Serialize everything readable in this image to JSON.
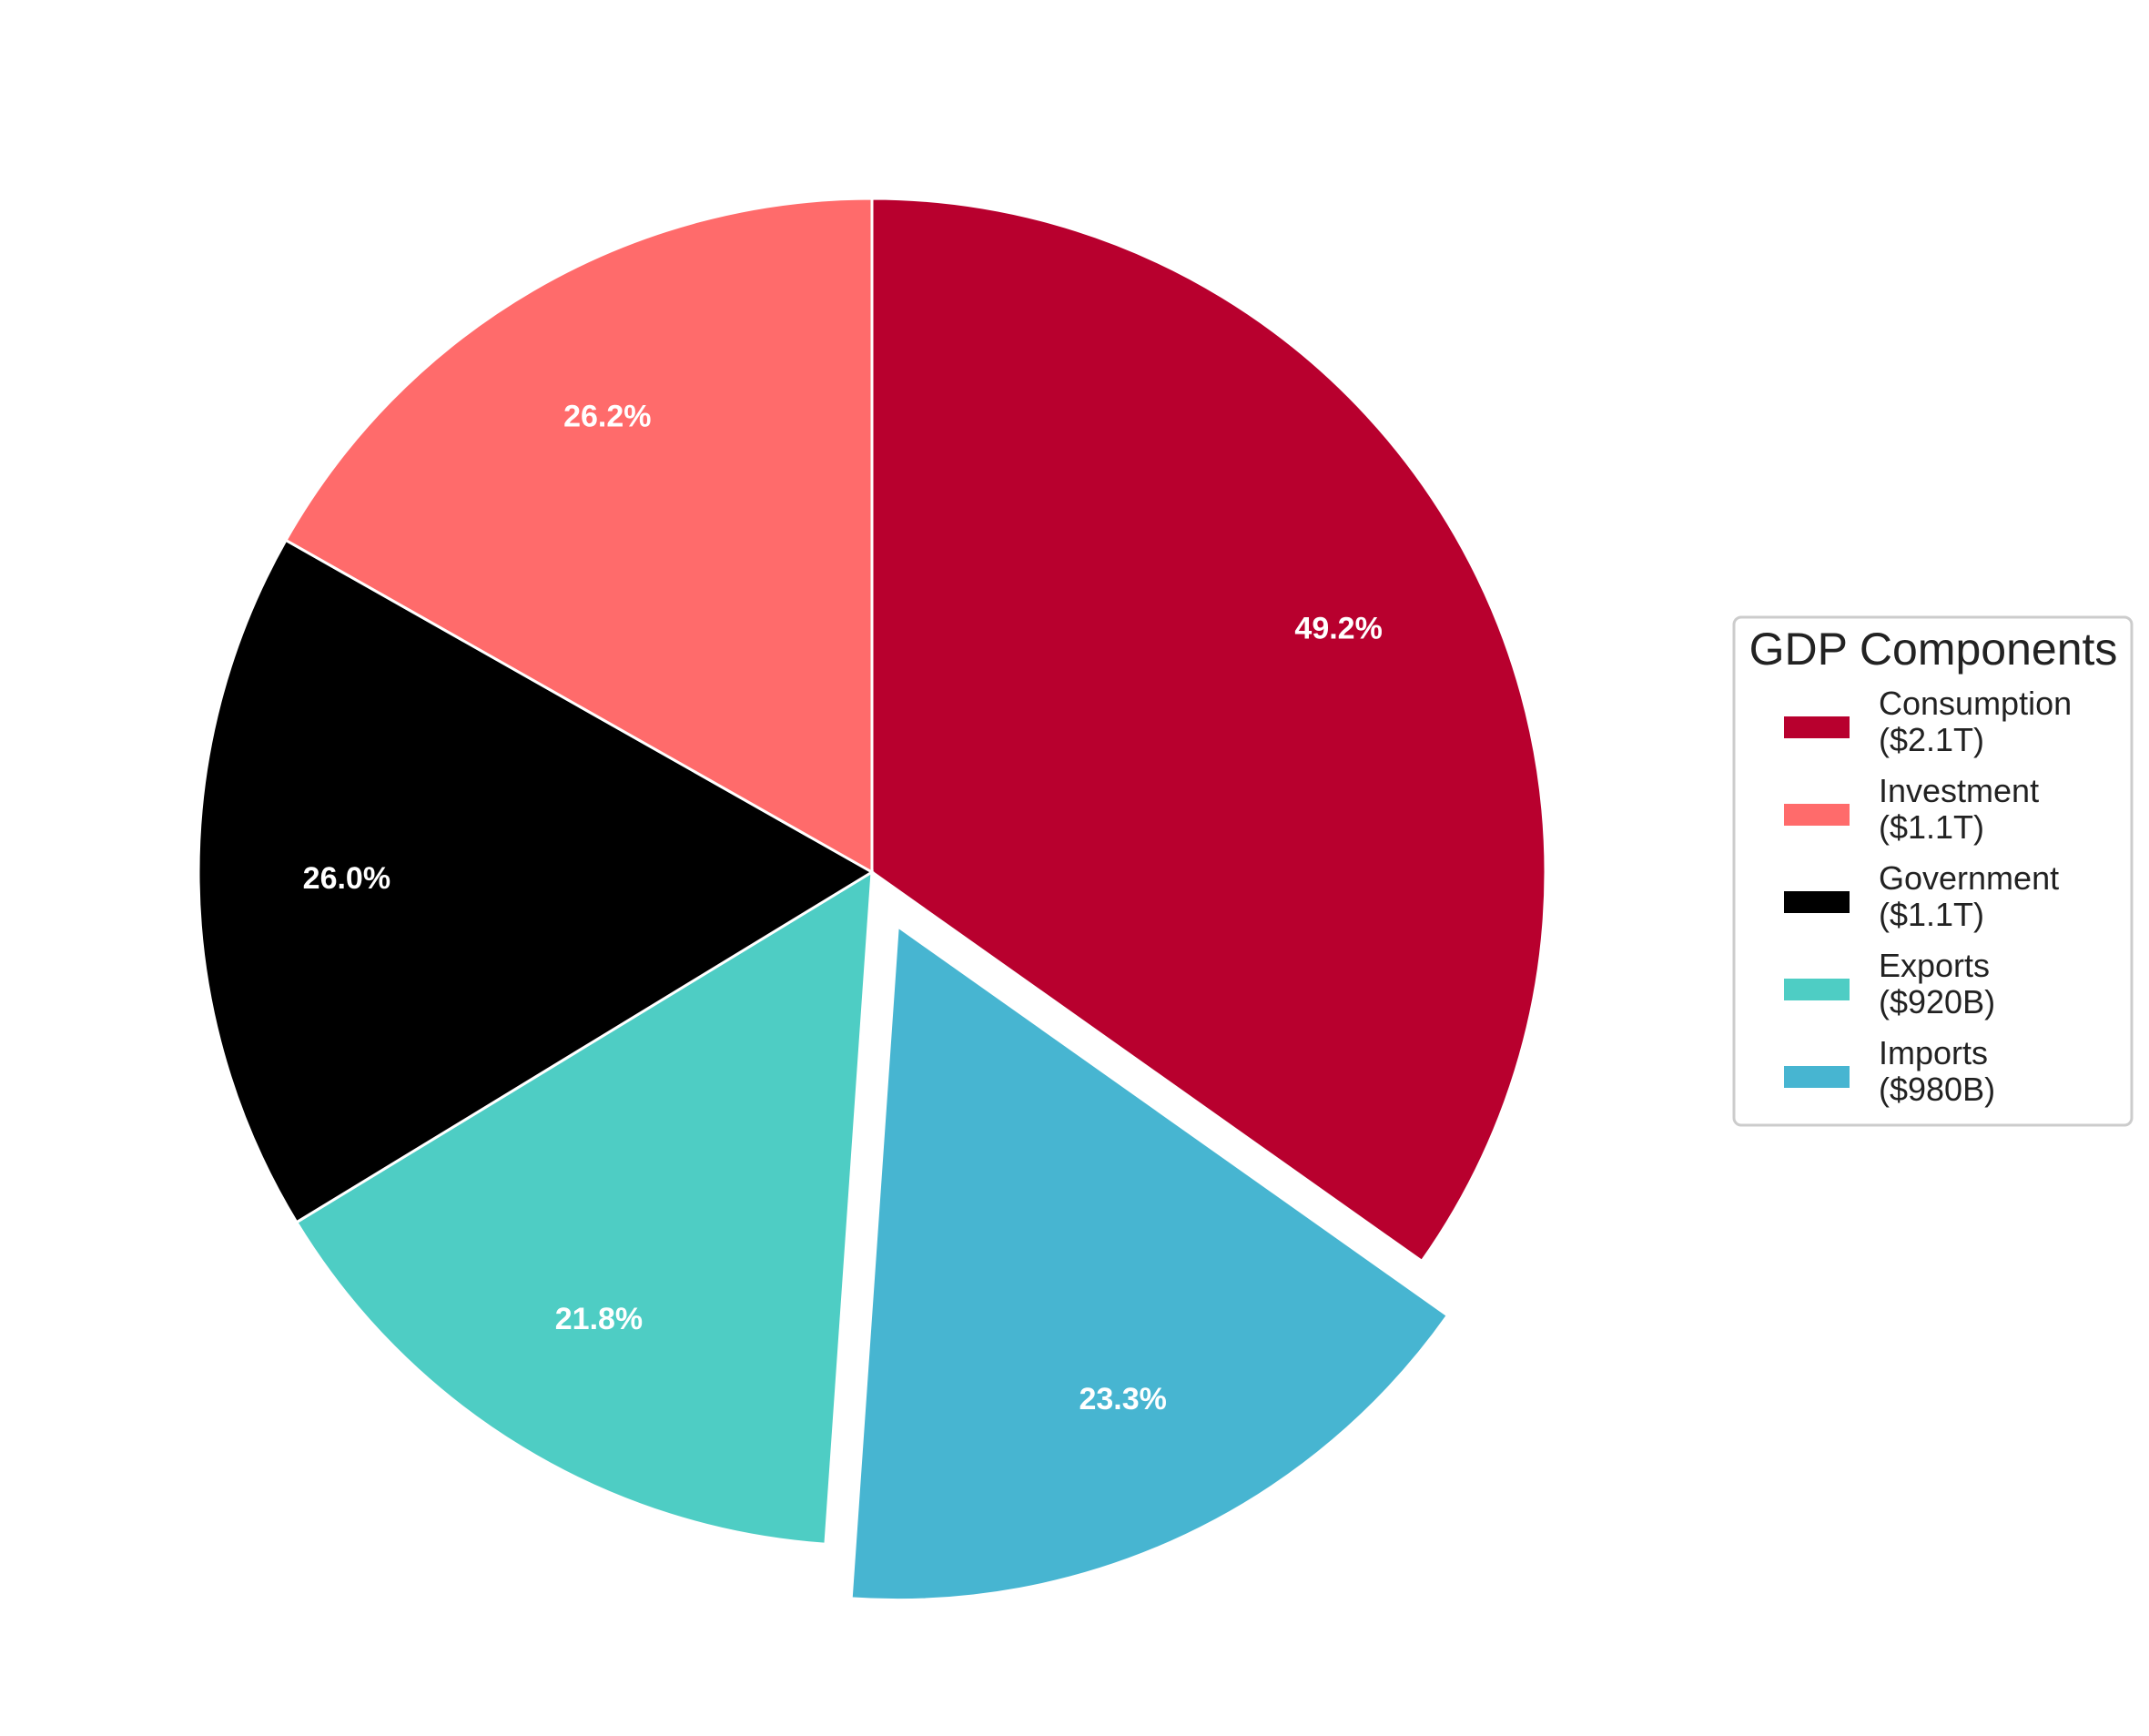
{
  "chart_data": {
    "type": "pie",
    "start_angle_deg": 90,
    "direction": "clockwise",
    "exploded": "Imports",
    "slices": [
      {
        "name": "Consumption",
        "amount_label": "($2.1T)",
        "pct_label": "49.2%",
        "share": 0.348,
        "color": "#b8002e"
      },
      {
        "name": "Imports",
        "amount_label": "($980B)",
        "pct_label": "23.3%",
        "share": 0.163,
        "color": "#47b5d1"
      },
      {
        "name": "Exports",
        "amount_label": "($920B)",
        "pct_label": "21.8%",
        "share": 0.152,
        "color": "#4ecdc4"
      },
      {
        "name": "Government",
        "amount_label": "($1.1T)",
        "pct_label": "26.0%",
        "share": 0.169,
        "color": "#000000"
      },
      {
        "name": "Investment",
        "amount_label": "($1.1T)",
        "pct_label": "26.2%",
        "share": 0.168,
        "color": "#ff6b6b"
      }
    ],
    "legend": {
      "title": "GDP Components",
      "placement": "center-right",
      "order": [
        "Consumption",
        "Investment",
        "Government",
        "Exports",
        "Imports"
      ]
    }
  }
}
